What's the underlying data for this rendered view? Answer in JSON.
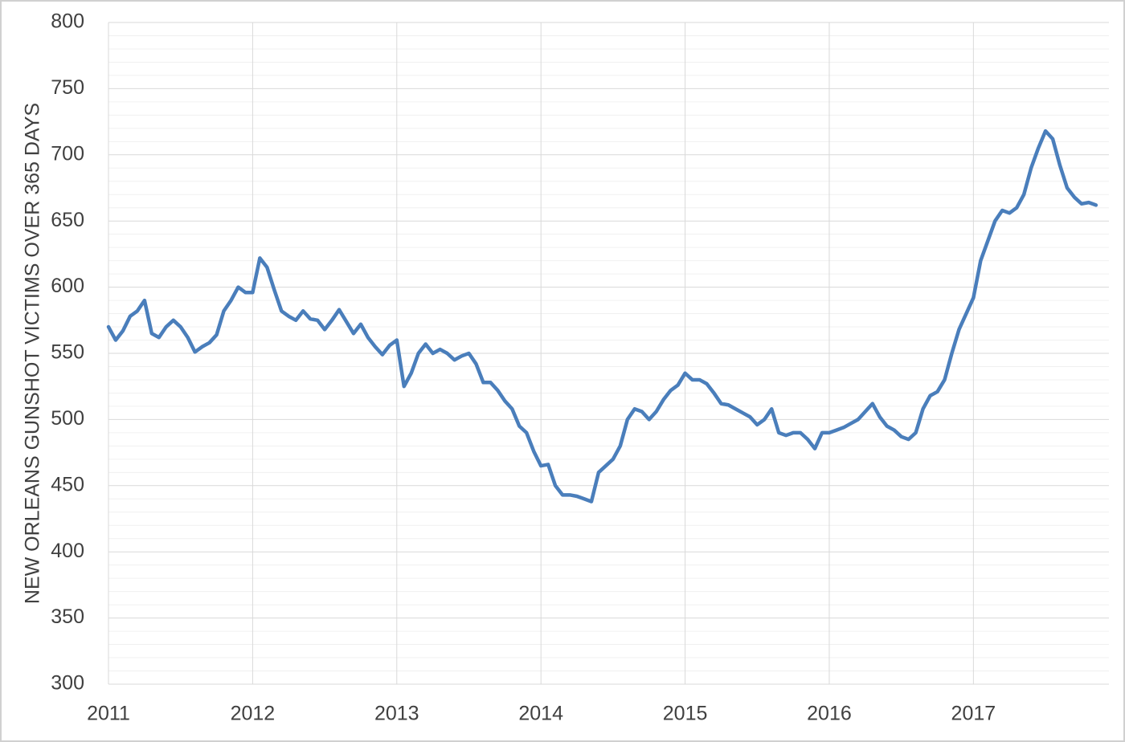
{
  "chart_data": {
    "type": "line",
    "ylabel": "NEW ORLEANS GUNSHOT VICTIMS OVER 365 DAYS",
    "color": "#4a7ebb",
    "xlim": [
      2011,
      2017.94
    ],
    "xticks": [
      2011,
      2012,
      2013,
      2014,
      2015,
      2016,
      2017
    ],
    "ylim": [
      300,
      800
    ],
    "yticks": [
      300,
      350,
      400,
      450,
      500,
      550,
      600,
      650,
      700,
      750,
      800
    ],
    "minor_yticks": [
      310,
      320,
      330,
      340,
      360,
      370,
      380,
      390,
      410,
      420,
      430,
      440,
      460,
      470,
      480,
      490,
      510,
      520,
      530,
      540,
      560,
      570,
      580,
      590,
      610,
      620,
      630,
      640,
      660,
      670,
      680,
      690,
      710,
      720,
      730,
      740,
      760,
      770,
      780,
      790
    ],
    "grid": true,
    "x": [
      2011,
      2011.05,
      2011.1,
      2011.15,
      2011.2,
      2011.25,
      2011.3,
      2011.35,
      2011.4,
      2011.45,
      2011.5,
      2011.55,
      2011.6,
      2011.65,
      2011.7,
      2011.75,
      2011.8,
      2011.85,
      2011.9,
      2011.95,
      2012,
      2012.05,
      2012.1,
      2012.15,
      2012.2,
      2012.25,
      2012.3,
      2012.35,
      2012.4,
      2012.45,
      2012.5,
      2012.55,
      2012.6,
      2012.65,
      2012.7,
      2012.75,
      2012.8,
      2012.85,
      2012.9,
      2012.95,
      2013,
      2013.05,
      2013.1,
      2013.15,
      2013.2,
      2013.25,
      2013.3,
      2013.35,
      2013.4,
      2013.45,
      2013.5,
      2013.55,
      2013.6,
      2013.65,
      2013.7,
      2013.75,
      2013.8,
      2013.85,
      2013.9,
      2013.95,
      2014,
      2014.05,
      2014.1,
      2014.15,
      2014.2,
      2014.25,
      2014.3,
      2014.35,
      2014.4,
      2014.45,
      2014.5,
      2014.55,
      2014.6,
      2014.65,
      2014.7,
      2014.75,
      2014.8,
      2014.85,
      2014.9,
      2014.95,
      2015,
      2015.05,
      2015.1,
      2015.15,
      2015.2,
      2015.25,
      2015.3,
      2015.35,
      2015.4,
      2015.45,
      2015.5,
      2015.55,
      2015.6,
      2015.65,
      2015.7,
      2015.75,
      2015.8,
      2015.85,
      2015.9,
      2015.95,
      2016,
      2016.05,
      2016.1,
      2016.15,
      2016.2,
      2016.25,
      2016.3,
      2016.35,
      2016.4,
      2016.45,
      2016.5,
      2016.55,
      2016.6,
      2016.65,
      2016.7,
      2016.75,
      2016.8,
      2016.85,
      2016.9,
      2016.95,
      2017,
      2017.05,
      2017.1,
      2017.15,
      2017.2,
      2017.25,
      2017.3,
      2017.35,
      2017.4,
      2017.45,
      2017.5,
      2017.55,
      2017.6,
      2017.65,
      2017.7,
      2017.75,
      2017.8,
      2017.85
    ],
    "values": [
      570,
      560,
      567,
      578,
      582,
      590,
      565,
      562,
      570,
      575,
      570,
      562,
      551,
      555,
      558,
      564,
      582,
      590,
      600,
      596,
      596,
      622,
      615,
      598,
      582,
      578,
      575,
      582,
      576,
      575,
      568,
      575,
      583,
      574,
      565,
      572,
      562,
      555,
      549,
      556,
      560,
      525,
      535,
      550,
      557,
      550,
      553,
      550,
      545,
      548,
      550,
      542,
      528,
      528,
      522,
      514,
      508,
      495,
      490,
      476,
      465,
      466,
      450,
      443,
      443,
      442,
      440,
      438,
      460,
      465,
      470,
      480,
      500,
      508,
      506,
      500,
      506,
      515,
      522,
      526,
      535,
      530,
      530,
      527,
      520,
      512,
      511,
      508,
      505,
      502,
      496,
      500,
      508,
      490,
      488,
      490,
      490,
      485,
      478,
      490,
      490,
      492,
      494,
      497,
      500,
      506,
      512,
      502,
      495,
      492,
      487,
      485,
      490,
      508,
      518,
      521,
      530,
      550,
      568,
      580,
      592,
      620,
      635,
      650,
      658,
      656,
      660,
      670,
      690,
      705,
      718,
      712,
      692,
      675,
      668,
      663,
      664,
      662
    ]
  }
}
